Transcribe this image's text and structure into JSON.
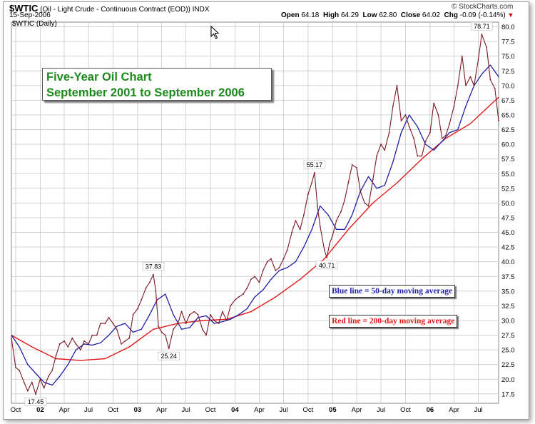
{
  "header": {
    "symbol": "$WTIC",
    "description": "(Oil - Light Crude - Continuous Contract (EOD))",
    "exchange": "INDX",
    "date": "15-Sep-2006",
    "open_label": "Open",
    "open_value": "64.18",
    "high_label": "High",
    "high_value": "64.29",
    "low_label": "Low",
    "low_value": "62.80",
    "close_label": "Close",
    "close_value": "64.02",
    "chg_label": "Chg",
    "chg_value": "-0.09 (-0.14%)",
    "watermark": "© StockCharts.com",
    "series_label": "$WTIC (Daily)"
  },
  "annotations": {
    "title_line1": "Five-Year Oil Chart",
    "title_line2": "September 2001 to September 2006",
    "blue_legend": "Blue line = 50-day moving average",
    "red_legend": "Red line = 200-day moving average"
  },
  "colors": {
    "price": "#7b1822",
    "ma50": "#1f1fa8",
    "ma200": "#e01a1a",
    "grid": "#c8c8c8",
    "title_green": "#1c8a1c"
  },
  "chart_data": {
    "type": "line",
    "title": "Five-Year Oil Chart",
    "subtitle": "September 2001 to September 2006",
    "ylim": [
      15.9,
      80.8
    ],
    "y_ticks": [
      17.5,
      20.0,
      22.5,
      25.0,
      27.5,
      30.0,
      32.5,
      35.0,
      37.5,
      40.0,
      42.5,
      45.0,
      47.5,
      50.0,
      52.5,
      55.0,
      57.5,
      60.0,
      62.5,
      65.0,
      67.5,
      70.0,
      72.5,
      75.0,
      77.5,
      80.0
    ],
    "y_axis_side": "right",
    "grid": true,
    "x_ticks": [
      {
        "label": "Oct",
        "date": "2001-10-01",
        "bold": false
      },
      {
        "label": "02",
        "date": "2002-01-01",
        "bold": true
      },
      {
        "label": "Apr",
        "date": "2002-04-01",
        "bold": false
      },
      {
        "label": "Jul",
        "date": "2002-07-01",
        "bold": false
      },
      {
        "label": "Oct",
        "date": "2002-10-01",
        "bold": false
      },
      {
        "label": "03",
        "date": "2003-01-01",
        "bold": true
      },
      {
        "label": "Apr",
        "date": "2003-04-01",
        "bold": false
      },
      {
        "label": "Jul",
        "date": "2003-07-01",
        "bold": false
      },
      {
        "label": "Oct",
        "date": "2003-10-01",
        "bold": false
      },
      {
        "label": "04",
        "date": "2004-01-01",
        "bold": true
      },
      {
        "label": "Apr",
        "date": "2004-04-01",
        "bold": false
      },
      {
        "label": "Jul",
        "date": "2004-07-01",
        "bold": false
      },
      {
        "label": "Oct",
        "date": "2004-10-01",
        "bold": false
      },
      {
        "label": "05",
        "date": "2005-01-01",
        "bold": true
      },
      {
        "label": "Apr",
        "date": "2005-04-01",
        "bold": false
      },
      {
        "label": "Jul",
        "date": "2005-07-01",
        "bold": false
      },
      {
        "label": "Oct",
        "date": "2005-10-01",
        "bold": false
      },
      {
        "label": "06",
        "date": "2006-01-01",
        "bold": true
      },
      {
        "label": "Apr",
        "date": "2006-04-01",
        "bold": false
      },
      {
        "label": "Jul",
        "date": "2006-07-01",
        "bold": false
      }
    ],
    "x_range": [
      "2001-09-15",
      "2006-09-15"
    ],
    "series": [
      {
        "name": "$WTIC (Daily)",
        "x": [
          "2001-09-15",
          "2001-10-01",
          "2001-10-15",
          "2001-11-01",
          "2001-11-15",
          "2001-12-01",
          "2001-12-15",
          "2002-01-01",
          "2002-01-15",
          "2002-02-01",
          "2002-02-15",
          "2002-03-01",
          "2002-03-15",
          "2002-04-01",
          "2002-04-15",
          "2002-05-01",
          "2002-05-15",
          "2002-06-01",
          "2002-06-15",
          "2002-07-01",
          "2002-07-15",
          "2002-08-01",
          "2002-08-15",
          "2002-09-01",
          "2002-09-15",
          "2002-10-01",
          "2002-10-15",
          "2002-11-01",
          "2002-11-15",
          "2002-12-01",
          "2002-12-15",
          "2003-01-01",
          "2003-01-15",
          "2003-02-01",
          "2003-02-15",
          "2003-03-01",
          "2003-03-10",
          "2003-03-20",
          "2003-04-01",
          "2003-04-15",
          "2003-04-28",
          "2003-05-15",
          "2003-06-01",
          "2003-06-15",
          "2003-07-01",
          "2003-07-15",
          "2003-08-01",
          "2003-08-15",
          "2003-09-01",
          "2003-09-15",
          "2003-10-01",
          "2003-10-15",
          "2003-11-01",
          "2003-11-15",
          "2003-12-01",
          "2003-12-15",
          "2004-01-01",
          "2004-01-15",
          "2004-02-01",
          "2004-02-15",
          "2004-03-01",
          "2004-03-15",
          "2004-04-01",
          "2004-04-15",
          "2004-05-01",
          "2004-05-15",
          "2004-06-01",
          "2004-06-15",
          "2004-07-01",
          "2004-07-15",
          "2004-08-01",
          "2004-08-15",
          "2004-09-01",
          "2004-09-15",
          "2004-10-01",
          "2004-10-15",
          "2004-10-25",
          "2004-11-05",
          "2004-11-15",
          "2004-12-01",
          "2004-12-10",
          "2004-12-20",
          "2005-01-01",
          "2005-01-15",
          "2005-02-01",
          "2005-02-15",
          "2005-03-01",
          "2005-03-15",
          "2005-04-01",
          "2005-04-15",
          "2005-05-01",
          "2005-05-15",
          "2005-06-01",
          "2005-06-15",
          "2005-07-01",
          "2005-07-15",
          "2005-08-01",
          "2005-08-15",
          "2005-08-30",
          "2005-09-15",
          "2005-10-01",
          "2005-10-15",
          "2005-11-01",
          "2005-11-15",
          "2005-12-01",
          "2005-12-15",
          "2006-01-01",
          "2006-01-15",
          "2006-02-01",
          "2006-02-15",
          "2006-03-01",
          "2006-03-15",
          "2006-04-01",
          "2006-04-15",
          "2006-05-01",
          "2006-05-15",
          "2006-06-01",
          "2006-06-15",
          "2006-07-01",
          "2006-07-14",
          "2006-08-01",
          "2006-08-15",
          "2006-09-01",
          "2006-09-15"
        ],
        "y": [
          27.0,
          22.0,
          21.5,
          19.5,
          18.0,
          19.5,
          17.45,
          20.0,
          18.5,
          20.5,
          21.5,
          24.0,
          26.0,
          26.5,
          25.5,
          27.0,
          26.0,
          25.0,
          26.5,
          26.0,
          27.5,
          27.5,
          29.5,
          29.5,
          30.5,
          29.5,
          28.5,
          26.0,
          26.5,
          27.0,
          31.0,
          32.0,
          33.5,
          35.5,
          36.5,
          37.83,
          35.0,
          29.0,
          28.0,
          27.5,
          25.24,
          28.5,
          29.5,
          31.5,
          29.5,
          31.0,
          31.5,
          31.0,
          28.5,
          27.5,
          31.0,
          30.0,
          29.5,
          31.5,
          30.0,
          32.5,
          33.5,
          34.0,
          34.5,
          35.5,
          37.0,
          37.5,
          36.5,
          38.5,
          40.0,
          40.5,
          38.5,
          39.0,
          40.5,
          42.0,
          45.0,
          47.0,
          45.5,
          48.0,
          51.5,
          53.5,
          55.17,
          49.5,
          46.0,
          42.0,
          40.71,
          43.0,
          44.5,
          47.0,
          48.5,
          50.5,
          53.5,
          56.5,
          56.0,
          52.0,
          50.0,
          49.5,
          54.0,
          58.0,
          60.0,
          59.0,
          62.0,
          66.5,
          70.0,
          64.0,
          65.0,
          63.0,
          61.0,
          58.0,
          58.0,
          60.5,
          62.0,
          67.0,
          65.0,
          61.0,
          61.5,
          63.5,
          66.5,
          70.0,
          75.0,
          70.0,
          71.5,
          70.0,
          74.5,
          78.71,
          76.5,
          71.0,
          69.5,
          64.02
        ]
      },
      {
        "name": "50-day moving average",
        "x": [
          "2001-09-15",
          "2001-10-15",
          "2001-11-15",
          "2001-12-15",
          "2002-01-15",
          "2002-02-15",
          "2002-03-15",
          "2002-04-15",
          "2002-05-15",
          "2002-06-15",
          "2002-07-15",
          "2002-08-15",
          "2002-09-15",
          "2002-10-15",
          "2002-11-15",
          "2002-12-15",
          "2003-01-15",
          "2003-02-15",
          "2003-03-15",
          "2003-04-15",
          "2003-05-15",
          "2003-06-15",
          "2003-07-15",
          "2003-08-15",
          "2003-09-15",
          "2003-10-15",
          "2003-11-15",
          "2003-12-15",
          "2004-01-15",
          "2004-02-15",
          "2004-03-15",
          "2004-04-15",
          "2004-05-15",
          "2004-06-15",
          "2004-07-15",
          "2004-08-15",
          "2004-09-15",
          "2004-10-15",
          "2004-11-15",
          "2004-12-15",
          "2005-01-15",
          "2005-02-15",
          "2005-03-15",
          "2005-04-15",
          "2005-05-15",
          "2005-06-15",
          "2005-07-15",
          "2005-08-15",
          "2005-09-15",
          "2005-10-15",
          "2005-11-15",
          "2005-12-15",
          "2006-01-15",
          "2006-02-15",
          "2006-03-15",
          "2006-04-15",
          "2006-05-15",
          "2006-06-15",
          "2006-07-15",
          "2006-08-15",
          "2006-09-15"
        ],
        "y": [
          27.5,
          25.5,
          22.5,
          21.0,
          19.5,
          19.0,
          20.5,
          22.5,
          25.0,
          26.0,
          25.8,
          26.2,
          27.5,
          29.0,
          29.5,
          28.0,
          28.5,
          31.0,
          33.5,
          34.5,
          31.0,
          28.5,
          28.8,
          30.5,
          30.8,
          29.5,
          29.8,
          30.2,
          31.0,
          32.0,
          34.0,
          35.2,
          37.0,
          38.5,
          39.0,
          40.0,
          42.5,
          45.5,
          49.5,
          48.0,
          45.5,
          45.5,
          48.0,
          52.0,
          54.5,
          52.5,
          53.0,
          57.0,
          62.0,
          65.0,
          63.0,
          60.0,
          59.0,
          60.5,
          62.0,
          62.5,
          66.5,
          70.0,
          72.0,
          73.5,
          71.5
        ]
      },
      {
        "name": "200-day moving average",
        "x": [
          "2001-09-15",
          "2001-12-01",
          "2002-03-01",
          "2002-06-01",
          "2002-09-01",
          "2002-12-01",
          "2003-03-01",
          "2003-06-01",
          "2003-09-01",
          "2003-12-01",
          "2004-03-01",
          "2004-06-01",
          "2004-09-01",
          "2004-12-01",
          "2005-03-01",
          "2005-06-01",
          "2005-09-01",
          "2005-12-01",
          "2006-03-01",
          "2006-06-01",
          "2006-09-15"
        ],
        "y": [
          27.5,
          25.5,
          23.5,
          23.2,
          23.5,
          25.5,
          28.5,
          29.5,
          30.0,
          30.2,
          31.5,
          34.0,
          37.0,
          40.5,
          45.5,
          50.0,
          53.5,
          57.5,
          61.0,
          63.5,
          68.0
        ]
      }
    ],
    "point_labels": [
      {
        "label": "17.45",
        "x": "2001-12-15",
        "y": 17.45,
        "position": "below"
      },
      {
        "label": "37.83",
        "x": "2003-03-01",
        "y": 37.83,
        "position": "above"
      },
      {
        "label": "25.24",
        "x": "2003-04-28",
        "y": 25.24,
        "position": "below"
      },
      {
        "label": "55.17",
        "x": "2004-10-25",
        "y": 55.17,
        "position": "above"
      },
      {
        "label": "40.71",
        "x": "2004-12-10",
        "y": 40.71,
        "position": "below"
      },
      {
        "label": "78.71",
        "x": "2006-07-14",
        "y": 78.71,
        "position": "above"
      }
    ]
  }
}
